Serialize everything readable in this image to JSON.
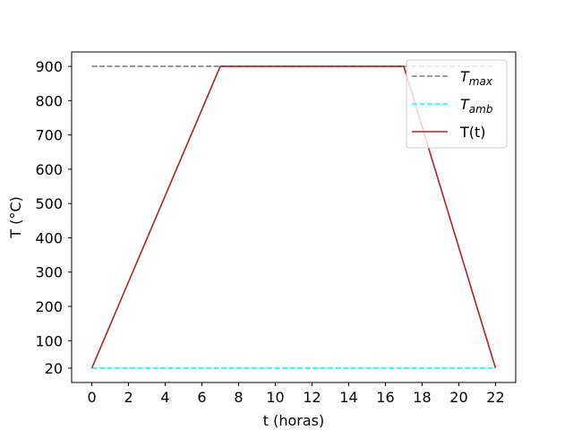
{
  "chart_data": {
    "type": "line",
    "title": "",
    "xlabel": "t (horas)",
    "ylabel": "T (°C)",
    "xlim": [
      -1.1,
      23.1
    ],
    "ylim": [
      -22,
      942
    ],
    "x_ticks": [
      0,
      2,
      4,
      6,
      8,
      10,
      12,
      14,
      16,
      18,
      20,
      22
    ],
    "y_ticks": [
      20,
      100,
      200,
      300,
      400,
      500,
      600,
      700,
      800,
      900
    ],
    "grid": false,
    "legend_position": "upper-right",
    "series": [
      {
        "name": "T_max",
        "label_base": "T",
        "label_sub": "max",
        "color": "#808080",
        "dash": "dashed",
        "x": [
          0,
          22
        ],
        "y": [
          900,
          900
        ]
      },
      {
        "name": "T_amb",
        "label_base": "T",
        "label_sub": "amb",
        "color": "#00ffff",
        "dash": "dashed",
        "x": [
          0,
          22
        ],
        "y": [
          20,
          20
        ]
      },
      {
        "name": "T(t)",
        "label_base": "T(t)",
        "label_sub": "",
        "color": "#b22222",
        "dash": "solid",
        "x": [
          0,
          7,
          17,
          22
        ],
        "y": [
          20,
          900,
          900,
          20
        ]
      }
    ]
  }
}
